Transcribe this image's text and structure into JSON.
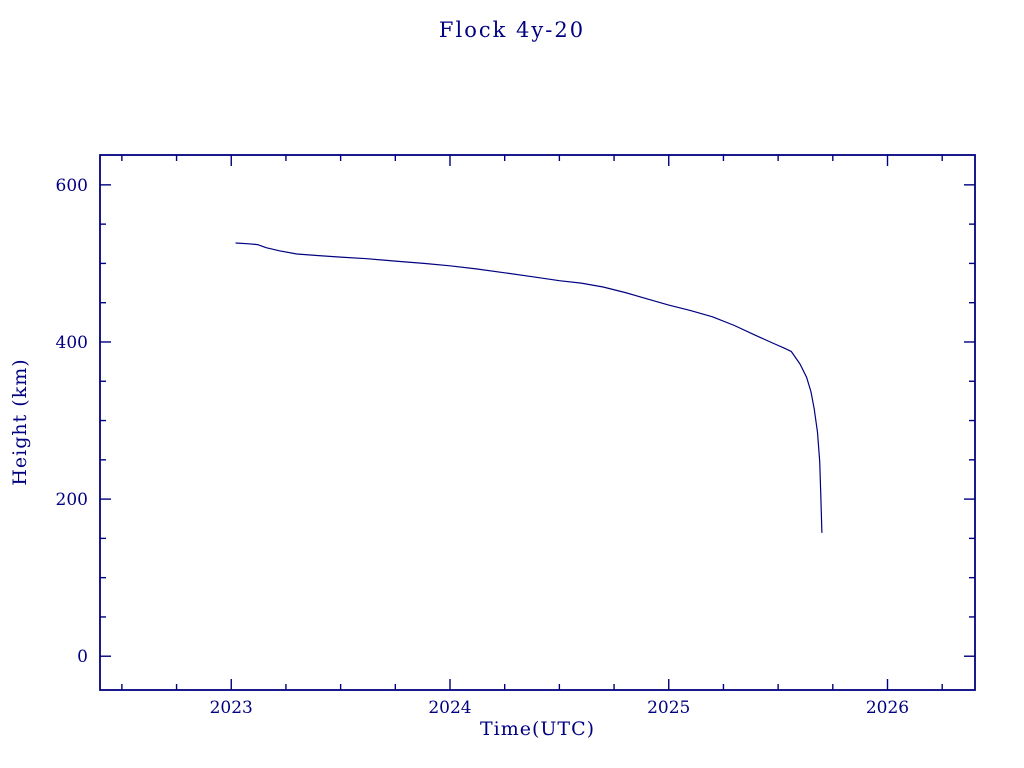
{
  "chart_data": {
    "type": "line",
    "title": "Flock 4y-20",
    "xlabel": "Time(UTC)",
    "ylabel": "Height (km)",
    "xlim": [
      2022.4,
      2026.4
    ],
    "ylim": [
      -43,
      638
    ],
    "x_ticks": [
      2023,
      2024,
      2025,
      2026
    ],
    "x_minor_step": 0.25,
    "y_ticks": [
      0,
      200,
      400,
      600
    ],
    "y_minor_step": 50,
    "axis_color": "#000080",
    "line_color": "#000080",
    "background": "#ffffff",
    "grid": false,
    "legend": "none",
    "series": [
      {
        "name": "height-km",
        "x": [
          2023.02,
          2023.08,
          2023.12,
          2023.16,
          2023.22,
          2023.3,
          2023.4,
          2023.5,
          2023.62,
          2023.75,
          2023.88,
          2024.0,
          2024.12,
          2024.25,
          2024.38,
          2024.5,
          2024.6,
          2024.7,
          2024.8,
          2024.9,
          2025.0,
          2025.1,
          2025.2,
          2025.3,
          2025.4,
          2025.48,
          2025.53,
          2025.56,
          2025.6,
          2025.63,
          2025.65,
          2025.665,
          2025.68,
          2025.69,
          2025.695,
          2025.7
        ],
        "y": [
          526,
          525,
          524,
          520,
          516,
          512,
          510,
          508,
          506,
          503,
          500,
          497,
          493,
          488,
          483,
          478,
          475,
          470,
          463,
          455,
          447,
          440,
          432,
          421,
          408,
          398,
          392,
          388,
          372,
          355,
          337,
          315,
          285,
          248,
          205,
          157
        ]
      }
    ]
  }
}
